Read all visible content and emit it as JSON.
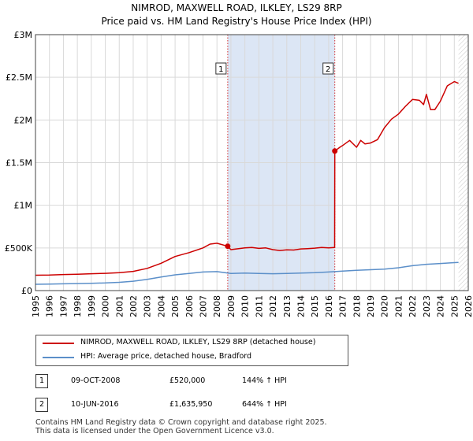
{
  "header": {
    "title": "NIMROD, MAXWELL ROAD, ILKLEY, LS29 8RP",
    "subtitle": "Price paid vs. HM Land Registry's House Price Index (HPI)"
  },
  "legend": {
    "property": "NIMROD, MAXWELL ROAD, ILKLEY, LS29 8RP (detached house)",
    "hpi": "HPI: Average price, detached house, Bradford"
  },
  "transactions": [
    {
      "num": "1",
      "date": "09-OCT-2008",
      "price": "£520,000",
      "hpi_change": "144% ↑ HPI"
    },
    {
      "num": "2",
      "date": "10-JUN-2016",
      "price": "£1,635,950",
      "hpi_change": "644% ↑ HPI"
    }
  ],
  "footer": {
    "line1": "Contains HM Land Registry data © Crown copyright and database right 2025.",
    "line2": "This data is licensed under the Open Government Licence v3.0."
  },
  "colors": {
    "property_line": "#cc0000",
    "hpi_line": "#5b8fc9",
    "shade": "#dce6f5",
    "grid": "#d9d9d9"
  },
  "chart_data": {
    "type": "line",
    "title": "NIMROD, MAXWELL ROAD, ILKLEY, LS29 8RP",
    "subtitle": "Price paid vs. HM Land Registry's House Price Index (HPI)",
    "xlabel": "",
    "ylabel": "",
    "xlim": [
      1995,
      2026
    ],
    "ylim": [
      0,
      3000000
    ],
    "x_ticks": [
      "1995",
      "1996",
      "1997",
      "1998",
      "1999",
      "2000",
      "2001",
      "2002",
      "2003",
      "2004",
      "2005",
      "2006",
      "2007",
      "2008",
      "2009",
      "2010",
      "2011",
      "2012",
      "2013",
      "2014",
      "2015",
      "2016",
      "2017",
      "2018",
      "2019",
      "2020",
      "2021",
      "2022",
      "2023",
      "2024",
      "2025",
      "2026"
    ],
    "y_ticks": [
      {
        "value": 0,
        "label": "£0"
      },
      {
        "value": 500000,
        "label": "£500K"
      },
      {
        "value": 1000000,
        "label": "£1M"
      },
      {
        "value": 1500000,
        "label": "£1.5M"
      },
      {
        "value": 2000000,
        "label": "£2M"
      },
      {
        "value": 2500000,
        "label": "£2.5M"
      },
      {
        "value": 3000000,
        "label": "£3M"
      }
    ],
    "grid": true,
    "legend_position": "below",
    "shaded_span": [
      2008.77,
      2016.44
    ],
    "hatched_after": 2025.3,
    "markers": [
      {
        "label": "1",
        "x": 2008.77,
        "y": 520000
      },
      {
        "label": "2",
        "x": 2016.44,
        "y": 1635950
      }
    ],
    "series": [
      {
        "name": "NIMROD, MAXWELL ROAD, ILKLEY, LS29 8RP (detached house)",
        "x": [
          1995,
          1996,
          1997,
          1998,
          1999,
          2000,
          2001,
          2002,
          2003,
          2004,
          2005,
          2006,
          2007,
          2007.5,
          2008,
          2008.77,
          2009,
          2009.5,
          2010,
          2010.5,
          2011,
          2011.5,
          2012,
          2012.5,
          2013,
          2013.5,
          2014,
          2014.5,
          2015,
          2015.5,
          2016,
          2016.43,
          2016.44,
          2016.8,
          2017,
          2017.5,
          2018,
          2018.3,
          2018.6,
          2019,
          2019.5,
          2020,
          2020.5,
          2021,
          2021.5,
          2022,
          2022.5,
          2022.8,
          2023,
          2023.3,
          2023.6,
          2024,
          2024.5,
          2025,
          2025.3
        ],
        "values": [
          180000,
          182000,
          188000,
          192000,
          198000,
          202000,
          210000,
          225000,
          260000,
          320000,
          400000,
          445000,
          500000,
          545000,
          555000,
          520000,
          480000,
          490000,
          500000,
          505000,
          495000,
          500000,
          480000,
          470000,
          478000,
          475000,
          488000,
          492000,
          498000,
          505000,
          500000,
          505000,
          1635950,
          1680000,
          1700000,
          1760000,
          1680000,
          1760000,
          1720000,
          1730000,
          1770000,
          1910000,
          2010000,
          2070000,
          2160000,
          2240000,
          2230000,
          2180000,
          2300000,
          2120000,
          2120000,
          2220000,
          2400000,
          2450000,
          2430000
        ]
      },
      {
        "name": "HPI: Average price, detached house, Bradford",
        "x": [
          1995,
          1996,
          1997,
          1998,
          1999,
          2000,
          2001,
          2002,
          2003,
          2004,
          2005,
          2006,
          2007,
          2008,
          2009,
          2010,
          2011,
          2012,
          2013,
          2014,
          2015,
          2016,
          2017,
          2018,
          2019,
          2020,
          2021,
          2022,
          2023,
          2024,
          2025,
          2025.3
        ],
        "values": [
          74000,
          76000,
          79000,
          82000,
          86000,
          90000,
          97000,
          110000,
          132000,
          160000,
          185000,
          200000,
          218000,
          222000,
          200000,
          205000,
          200000,
          198000,
          200000,
          205000,
          210000,
          218000,
          228000,
          238000,
          245000,
          252000,
          268000,
          292000,
          308000,
          318000,
          328000,
          330000
        ]
      }
    ]
  }
}
